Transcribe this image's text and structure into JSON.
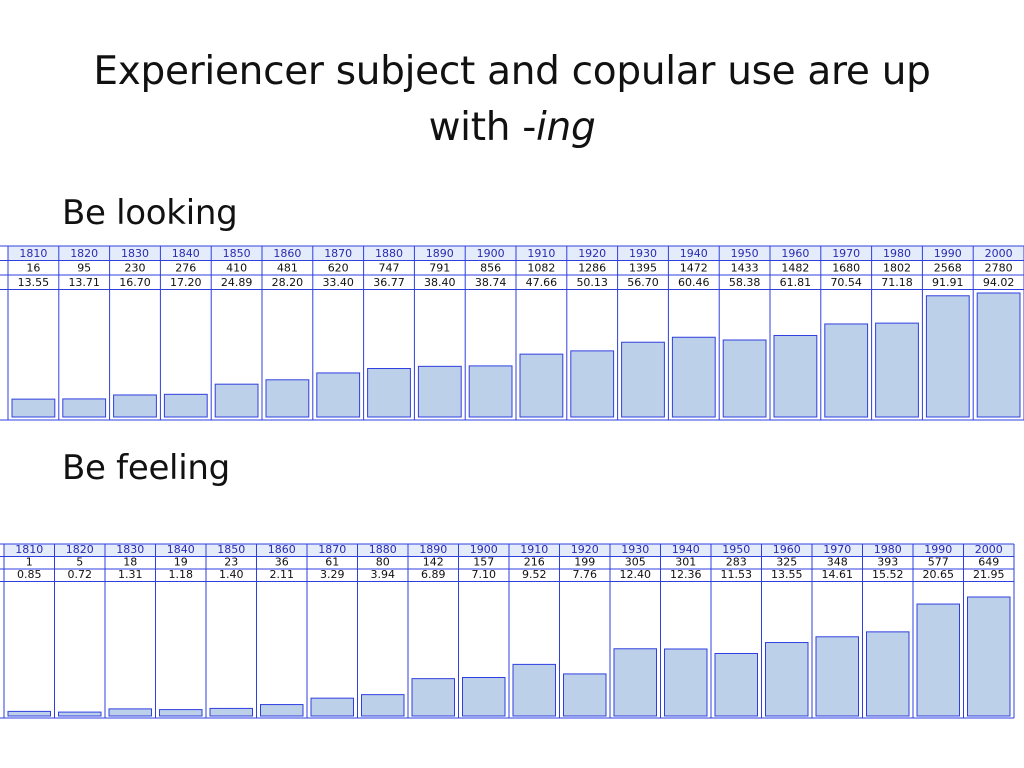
{
  "slide": {
    "title_line1": "Experiencer subject and copular use are up",
    "title_line2_prefix": "with -",
    "title_line2_italic": "ing"
  },
  "chart_data": [
    {
      "type": "bar",
      "title": "Be looking",
      "categories": [
        "1810",
        "1820",
        "1830",
        "1840",
        "1850",
        "1860",
        "1870",
        "1880",
        "1890",
        "1900",
        "1910",
        "1920",
        "1930",
        "1940",
        "1950",
        "1960",
        "1970",
        "1980",
        "1990",
        "2000"
      ],
      "counts": [
        "16",
        "95",
        "230",
        "276",
        "410",
        "481",
        "620",
        "747",
        "791",
        "856",
        "1082",
        "1286",
        "1395",
        "1472",
        "1433",
        "1482",
        "1680",
        "1802",
        "2568",
        "2780"
      ],
      "per_million_labels": [
        "13.55",
        "13.71",
        "16.70",
        "17.20",
        "24.89",
        "28.20",
        "33.40",
        "36.77",
        "38.40",
        "38.74",
        "47.66",
        "50.13",
        "56.70",
        "60.46",
        "58.38",
        "61.81",
        "70.54",
        "71.18",
        "91.91",
        "94.02"
      ],
      "values": [
        13.55,
        13.71,
        16.7,
        17.2,
        24.89,
        28.2,
        33.4,
        36.77,
        38.4,
        38.74,
        47.66,
        50.13,
        56.7,
        60.46,
        58.38,
        61.81,
        70.54,
        71.18,
        91.91,
        94.02
      ],
      "accent_color": "#2f3fe0",
      "bar_color": "#bdd0e9"
    },
    {
      "type": "bar",
      "title": "Be feeling",
      "categories": [
        "1810",
        "1820",
        "1830",
        "1840",
        "1850",
        "1860",
        "1870",
        "1880",
        "1890",
        "1900",
        "1910",
        "1920",
        "1930",
        "1940",
        "1950",
        "1960",
        "1970",
        "1980",
        "1990",
        "2000"
      ],
      "counts": [
        "1",
        "5",
        "18",
        "19",
        "23",
        "36",
        "61",
        "80",
        "142",
        "157",
        "216",
        "199",
        "305",
        "301",
        "283",
        "325",
        "348",
        "393",
        "577",
        "649"
      ],
      "per_million_labels": [
        "0.85",
        "0.72",
        "1.31",
        "1.18",
        "1.40",
        "2.11",
        "3.29",
        "3.94",
        "6.89",
        "7.10",
        "9.52",
        "7.76",
        "12.40",
        "12.36",
        "11.53",
        "13.55",
        "14.61",
        "15.52",
        "20.65",
        "21.95"
      ],
      "values": [
        0.85,
        0.72,
        1.31,
        1.18,
        1.4,
        2.11,
        3.29,
        3.94,
        6.89,
        7.1,
        9.52,
        7.76,
        12.4,
        12.36,
        11.53,
        13.55,
        14.61,
        15.52,
        20.65,
        21.95
      ],
      "accent_color": "#2f3fe0",
      "bar_color": "#bdd0e9"
    }
  ]
}
